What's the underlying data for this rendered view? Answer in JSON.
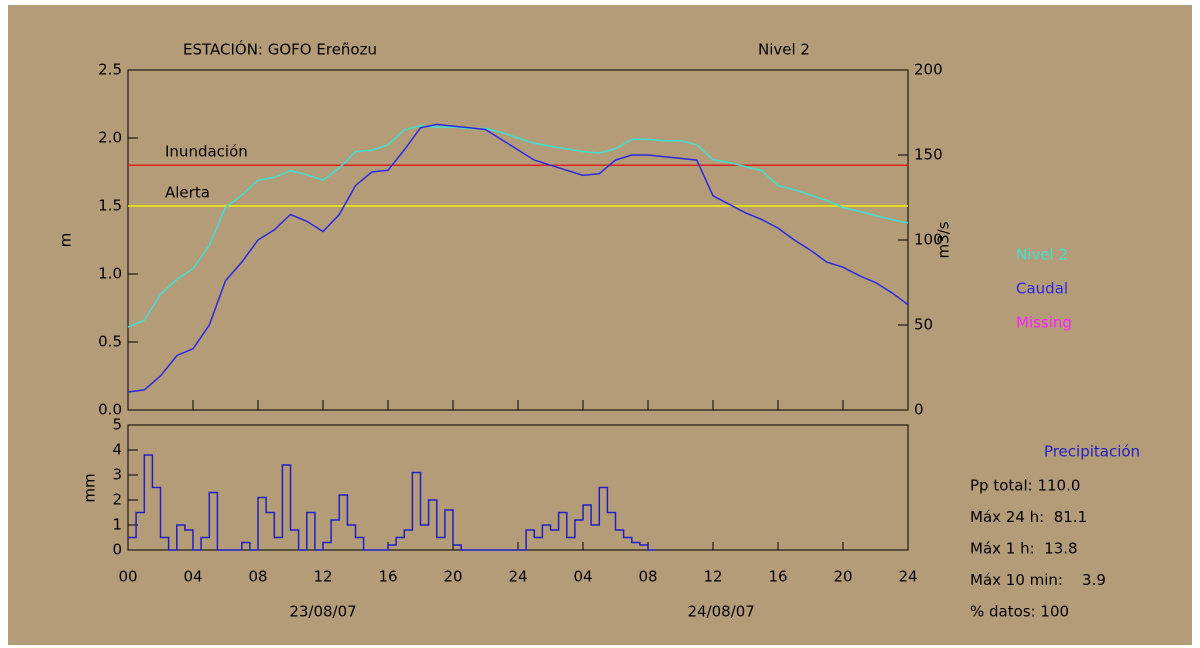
{
  "chart_data": [
    {
      "type": "line",
      "title": "ESTACIÓN: GOFO Ereñozu",
      "subtitle": "Nivel 2",
      "ylabel": "m",
      "y2label": "m3/s",
      "xlim": [
        0,
        48
      ],
      "ylim": [
        0,
        2.5
      ],
      "yticks": [
        {
          "value": 0,
          "label": "0.0"
        },
        {
          "value": 0.5,
          "label": "0.5"
        },
        {
          "value": 1,
          "label": "1.0"
        },
        {
          "value": 1.5,
          "label": "1.5"
        },
        {
          "value": 2,
          "label": "2.0"
        },
        {
          "value": 2.5,
          "label": "2.5"
        }
      ],
      "y2lim": [
        0,
        200
      ],
      "y2ticks": [
        0,
        50,
        100,
        150,
        200
      ],
      "x": [
        0,
        1,
        2,
        3,
        4,
        5,
        6,
        7,
        8,
        9,
        10,
        11,
        12,
        13,
        14,
        15,
        16,
        17,
        18,
        19,
        20,
        21,
        22,
        23,
        24,
        25,
        26,
        27,
        28,
        29,
        30,
        31,
        32,
        33,
        34,
        35,
        36,
        37,
        38,
        39,
        40,
        41,
        42,
        43,
        44,
        45,
        46,
        47,
        48
      ],
      "series": [
        {
          "name": "Nivel 2",
          "color": "#40e0d0",
          "values": [
            0.61,
            0.66,
            0.85,
            0.96,
            1.04,
            1.21,
            1.49,
            1.58,
            1.69,
            1.71,
            1.76,
            1.73,
            1.69,
            1.78,
            1.9,
            1.91,
            1.95,
            2.06,
            2.09,
            2.08,
            2.08,
            2.07,
            2.07,
            2.04,
            2.0,
            1.96,
            1.94,
            1.92,
            1.9,
            1.89,
            1.92,
            1.99,
            1.99,
            1.98,
            1.98,
            1.95,
            1.84,
            1.82,
            1.79,
            1.76,
            1.65,
            1.62,
            1.58,
            1.54,
            1.49,
            1.46,
            1.43,
            1.4,
            1.375
          ]
        },
        {
          "name": "Caudal",
          "color": "#2a2ae0",
          "axis": "y2",
          "values": [
            10.6,
            11.8,
            20,
            32,
            36,
            50,
            76,
            87,
            100,
            106,
            115,
            111,
            105,
            115,
            132,
            140,
            141,
            153,
            166,
            168,
            167,
            166,
            165,
            159,
            153,
            147,
            144,
            141,
            138,
            139,
            147,
            150,
            150,
            149,
            148,
            147,
            126,
            121,
            116,
            112,
            107,
            100,
            94,
            87,
            84,
            79,
            75,
            69,
            62
          ]
        }
      ],
      "legend_extra": {
        "name": "Missing",
        "color": "#ff20ff"
      },
      "thresholds": [
        {
          "label": "Inundación",
          "value": 1.8,
          "color": "#e02020"
        },
        {
          "label": "Alerta",
          "value": 1.5,
          "color": "#f0f000"
        }
      ]
    },
    {
      "type": "step",
      "title": "Precipitación",
      "ylabel": "mm",
      "xlim": [
        0,
        48
      ],
      "xticks": [
        {
          "value": 0,
          "label": "00"
        },
        {
          "value": 4,
          "label": "04"
        },
        {
          "value": 8,
          "label": "08"
        },
        12,
        16,
        20,
        24,
        {
          "value": 28,
          "label": "04"
        },
        {
          "value": 32,
          "label": "08"
        },
        {
          "value": 36,
          "label": "12"
        },
        {
          "value": 40,
          "label": "16"
        },
        {
          "value": 44,
          "label": "20"
        },
        {
          "value": 48,
          "label": "24"
        }
      ],
      "ylim": [
        0,
        5
      ],
      "yticks": [
        0,
        1,
        2,
        3,
        4,
        5
      ],
      "x": [
        0,
        0.5,
        1,
        1.5,
        2,
        2.5,
        3,
        3.5,
        4,
        4.5,
        5,
        5.5,
        6,
        6.5,
        7,
        7.5,
        8,
        8.5,
        9,
        9.5,
        10,
        10.5,
        11,
        11.5,
        12,
        12.5,
        13,
        13.5,
        14,
        14.5,
        15,
        15.5,
        16,
        16.5,
        17,
        17.5,
        18,
        18.5,
        19,
        19.5,
        20,
        20.5,
        21,
        21.5,
        22,
        22.5,
        23,
        23.5,
        24,
        24.5,
        25,
        25.5,
        26,
        26.5,
        27,
        27.5,
        28,
        28.5,
        29,
        29.5,
        30,
        30.5,
        31,
        31.5,
        32
      ],
      "color": "#2020c0",
      "values": [
        0.5,
        1.5,
        3.8,
        2.5,
        0.5,
        0,
        1.0,
        0.8,
        0,
        0.5,
        2.3,
        0,
        0,
        0,
        0.3,
        0,
        2.1,
        1.5,
        0.5,
        3.4,
        0.8,
        0,
        1.5,
        0,
        0.3,
        1.2,
        2.2,
        1.0,
        0.5,
        0,
        0,
        0,
        0.2,
        0.5,
        0.8,
        3.1,
        1.0,
        2.0,
        0.5,
        1.6,
        0.2,
        0,
        0,
        0,
        0,
        0,
        0,
        0,
        0,
        0.8,
        0.5,
        1.0,
        0.8,
        1.5,
        0.5,
        1.2,
        1.8,
        1.0,
        2.5,
        1.5,
        0.8,
        0.5,
        0.3,
        0.2,
        0
      ],
      "x_annotations": [
        {
          "x": 12,
          "label": "23/08/07"
        },
        {
          "x": 36.5,
          "label": "24/08/07"
        }
      ],
      "stats": [
        "Pp total: 110.0",
        "Máx 24 h:  81.1",
        "Máx 1 h:  13.8",
        "Máx 10 min:    3.9",
        "% datos: 100"
      ]
    }
  ]
}
